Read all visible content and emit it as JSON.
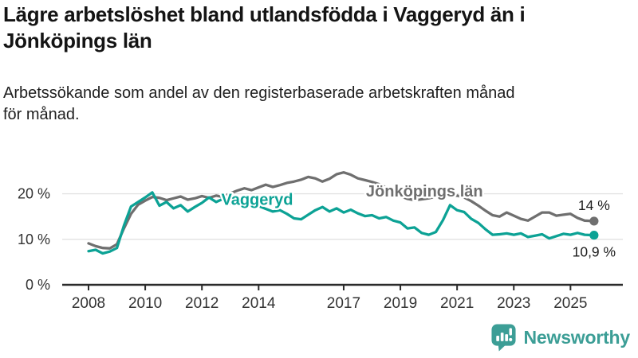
{
  "header": {
    "title": "Lägre arbetslöshet bland utlandsfödda i Vaggeryd än i\nJönköpings län",
    "subtitle": "Arbetssökande som andel av den registerbaserade arbetskraften månad\nför månad."
  },
  "footer": {
    "brand": "Newsworthy",
    "logo_icon": "bar-chart-speech-bubble-icon",
    "brand_color": "#3c9e96"
  },
  "colors": {
    "vaggeryd_teal": "#0ca295",
    "county_gray": "#6f6f6f",
    "gridline": "#e2e2e2",
    "axis": "#2b2b2b",
    "tick_text": "#333333",
    "end_label_text": "#1d1d1d"
  },
  "chart_data": {
    "type": "line",
    "unit": "%",
    "title": "Lägre arbetslöshet bland utlandsfödda i Vaggeryd än i Jönköpings län",
    "xlabel": "",
    "ylabel": "Arbetssökande som andel av den registerbaserade arbetskraften",
    "grid": "horizontal",
    "x_range": [
      2008.0,
      2026.0
    ],
    "ylim": [
      0,
      27
    ],
    "x_ticks": [
      2008,
      2010,
      2012,
      2014,
      2017,
      2019,
      2021,
      2023,
      2025
    ],
    "y_ticks": [
      {
        "value": 0,
        "label": "0 %"
      },
      {
        "value": 10,
        "label": "10 %"
      },
      {
        "value": 20,
        "label": "20 %"
      }
    ],
    "legend_position": "inline-labels",
    "series": [
      {
        "name": "Jönköpings län",
        "color": "#6f6f6f",
        "end_label": "14 %",
        "end_value": 14.0,
        "label_anchor": {
          "x": 2019.85,
          "y": 19.4
        },
        "points": [
          [
            2008,
            9.1
          ],
          [
            2008.25,
            8.5
          ],
          [
            2008.5,
            8.1
          ],
          [
            2008.75,
            8.0
          ],
          [
            2009,
            8.9
          ],
          [
            2009.25,
            12.4
          ],
          [
            2009.5,
            15.6
          ],
          [
            2009.75,
            17.6
          ],
          [
            2010,
            18.5
          ],
          [
            2010.25,
            19.3
          ],
          [
            2010.5,
            19.1
          ],
          [
            2010.75,
            18.6
          ],
          [
            2011,
            19.0
          ],
          [
            2011.25,
            19.4
          ],
          [
            2011.5,
            18.7
          ],
          [
            2011.75,
            19.0
          ],
          [
            2012,
            19.5
          ],
          [
            2012.25,
            19.1
          ],
          [
            2012.5,
            19.6
          ],
          [
            2012.75,
            19.3
          ],
          [
            2013,
            20.1
          ],
          [
            2013.25,
            20.7
          ],
          [
            2013.5,
            21.2
          ],
          [
            2013.75,
            20.8
          ],
          [
            2014,
            21.4
          ],
          [
            2014.25,
            22.0
          ],
          [
            2014.5,
            21.5
          ],
          [
            2014.75,
            21.9
          ],
          [
            2015,
            22.4
          ],
          [
            2015.25,
            22.7
          ],
          [
            2015.5,
            23.1
          ],
          [
            2015.75,
            23.7
          ],
          [
            2016,
            23.4
          ],
          [
            2016.25,
            22.7
          ],
          [
            2016.5,
            23.3
          ],
          [
            2016.75,
            24.3
          ],
          [
            2017,
            24.7
          ],
          [
            2017.25,
            24.2
          ],
          [
            2017.5,
            23.4
          ],
          [
            2017.75,
            23.0
          ],
          [
            2018,
            22.6
          ],
          [
            2018.25,
            22.1
          ],
          [
            2018.5,
            21.4
          ],
          [
            2018.75,
            20.5
          ],
          [
            2019,
            19.5
          ],
          [
            2019.25,
            18.9
          ],
          [
            2019.5,
            18.6
          ],
          [
            2019.75,
            18.8
          ],
          [
            2020,
            19.0
          ],
          [
            2020.25,
            19.4
          ],
          [
            2020.5,
            19.7
          ],
          [
            2020.75,
            19.5
          ],
          [
            2021,
            19.6
          ],
          [
            2021.25,
            19.2
          ],
          [
            2021.5,
            18.4
          ],
          [
            2021.75,
            17.4
          ],
          [
            2022,
            16.3
          ],
          [
            2022.25,
            15.3
          ],
          [
            2022.5,
            15.0
          ],
          [
            2022.75,
            15.9
          ],
          [
            2023,
            15.2
          ],
          [
            2023.25,
            14.5
          ],
          [
            2023.5,
            14.1
          ],
          [
            2023.75,
            15.0
          ],
          [
            2024,
            15.9
          ],
          [
            2024.25,
            15.9
          ],
          [
            2024.5,
            15.2
          ],
          [
            2024.75,
            15.4
          ],
          [
            2025,
            15.6
          ],
          [
            2025.25,
            14.7
          ],
          [
            2025.5,
            14.1
          ],
          [
            2025.83,
            14.0
          ]
        ]
      },
      {
        "name": "Vaggeryd",
        "color": "#0ca295",
        "end_label": "10,9 %",
        "end_value": 10.9,
        "label_anchor": {
          "x": 2013.95,
          "y": 17.6
        },
        "points": [
          [
            2008,
            7.4
          ],
          [
            2008.25,
            7.7
          ],
          [
            2008.5,
            6.9
          ],
          [
            2008.75,
            7.3
          ],
          [
            2009,
            8.1
          ],
          [
            2009.25,
            13.0
          ],
          [
            2009.5,
            17.2
          ],
          [
            2009.75,
            18.2
          ],
          [
            2010,
            19.2
          ],
          [
            2010.25,
            20.3
          ],
          [
            2010.5,
            17.4
          ],
          [
            2010.75,
            18.2
          ],
          [
            2011,
            16.8
          ],
          [
            2011.25,
            17.5
          ],
          [
            2011.5,
            16.1
          ],
          [
            2011.75,
            17.1
          ],
          [
            2012,
            18.0
          ],
          [
            2012.25,
            19.2
          ],
          [
            2012.5,
            18.2
          ],
          [
            2012.75,
            18.9
          ],
          [
            2013,
            17.8
          ],
          [
            2013.25,
            18.5
          ],
          [
            2013.5,
            17.7
          ],
          [
            2013.75,
            18.1
          ],
          [
            2014,
            17.3
          ],
          [
            2014.25,
            16.7
          ],
          [
            2014.5,
            16.1
          ],
          [
            2014.75,
            16.4
          ],
          [
            2015,
            15.6
          ],
          [
            2015.25,
            14.6
          ],
          [
            2015.5,
            14.4
          ],
          [
            2015.75,
            15.4
          ],
          [
            2016,
            16.4
          ],
          [
            2016.25,
            17.1
          ],
          [
            2016.5,
            16.1
          ],
          [
            2016.75,
            16.8
          ],
          [
            2017,
            15.9
          ],
          [
            2017.25,
            16.5
          ],
          [
            2017.5,
            15.7
          ],
          [
            2017.75,
            15.1
          ],
          [
            2018,
            15.3
          ],
          [
            2018.25,
            14.6
          ],
          [
            2018.5,
            14.9
          ],
          [
            2018.75,
            14.1
          ],
          [
            2019,
            13.7
          ],
          [
            2019.25,
            12.4
          ],
          [
            2019.5,
            12.6
          ],
          [
            2019.75,
            11.4
          ],
          [
            2020,
            11.0
          ],
          [
            2020.25,
            11.6
          ],
          [
            2020.5,
            14.2
          ],
          [
            2020.75,
            17.5
          ],
          [
            2021,
            16.4
          ],
          [
            2021.25,
            16.0
          ],
          [
            2021.5,
            14.5
          ],
          [
            2021.75,
            13.6
          ],
          [
            2022,
            12.2
          ],
          [
            2022.25,
            11.0
          ],
          [
            2022.5,
            11.1
          ],
          [
            2022.75,
            11.3
          ],
          [
            2023,
            11.0
          ],
          [
            2023.25,
            11.3
          ],
          [
            2023.5,
            10.5
          ],
          [
            2023.75,
            10.8
          ],
          [
            2024,
            11.1
          ],
          [
            2024.25,
            10.2
          ],
          [
            2024.5,
            10.7
          ],
          [
            2024.75,
            11.2
          ],
          [
            2025,
            11.0
          ],
          [
            2025.25,
            11.4
          ],
          [
            2025.5,
            11.0
          ],
          [
            2025.83,
            10.9
          ]
        ]
      }
    ]
  }
}
